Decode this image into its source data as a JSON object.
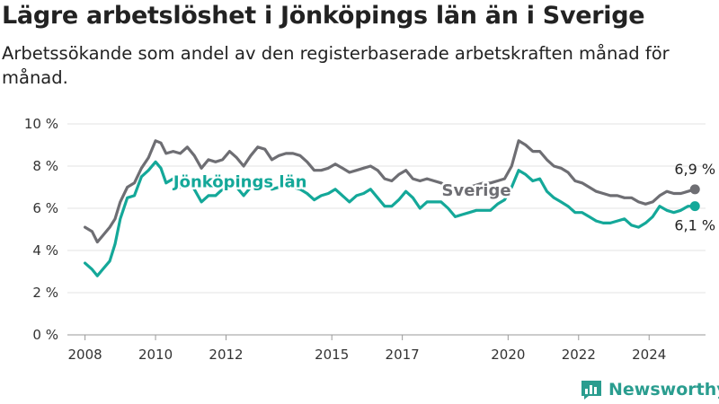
{
  "title": "Lägre arbetslöshet i Jönköpings län än i Sverige",
  "subtitle": "Arbetssökande som andel av den registerbaserade arbetskraften månad för månad.",
  "brand": {
    "name": "Newsworthy",
    "color": "#2a9d8f",
    "icon": "bar-chart-logo-icon"
  },
  "chart_data": {
    "type": "line",
    "xlabel": "",
    "ylabel": "",
    "xlim": [
      2007.5,
      2025.6
    ],
    "ylim": [
      0,
      10
    ],
    "y_ticks": [
      0,
      2,
      4,
      6,
      8,
      10
    ],
    "y_tick_labels": [
      "0 %",
      "2 %",
      "4 %",
      "6 %",
      "8 %",
      "10 %"
    ],
    "x_ticks": [
      2008,
      2010,
      2012,
      2015,
      2017,
      2020,
      2022,
      2024
    ],
    "x_tick_labels": [
      "2008",
      "2010",
      "2012",
      "2015",
      "2017",
      "2020",
      "2022",
      "2024"
    ],
    "grid": {
      "y": true,
      "x": false
    },
    "series": [
      {
        "name": "Sverige",
        "color": "#6e6e73",
        "end_label": "6,9 %",
        "x": [
          2008.0,
          2008.2,
          2008.35,
          2008.5,
          2008.7,
          2008.85,
          2009.0,
          2009.2,
          2009.4,
          2009.6,
          2009.8,
          2010.0,
          2010.15,
          2010.3,
          2010.5,
          2010.7,
          2010.9,
          2011.1,
          2011.3,
          2011.5,
          2011.7,
          2011.9,
          2012.1,
          2012.3,
          2012.5,
          2012.7,
          2012.9,
          2013.1,
          2013.3,
          2013.5,
          2013.7,
          2013.9,
          2014.1,
          2014.3,
          2014.5,
          2014.7,
          2014.9,
          2015.1,
          2015.3,
          2015.5,
          2015.7,
          2015.9,
          2016.1,
          2016.3,
          2016.5,
          2016.7,
          2016.9,
          2017.1,
          2017.3,
          2017.5,
          2017.7,
          2017.9,
          2018.1,
          2018.3,
          2018.5,
          2018.7,
          2018.9,
          2019.1,
          2019.3,
          2019.5,
          2019.7,
          2019.9,
          2020.1,
          2020.3,
          2020.5,
          2020.7,
          2020.9,
          2021.1,
          2021.3,
          2021.5,
          2021.7,
          2021.9,
          2022.1,
          2022.3,
          2022.5,
          2022.7,
          2022.9,
          2023.1,
          2023.3,
          2023.5,
          2023.7,
          2023.9,
          2024.1,
          2024.3,
          2024.5,
          2024.7,
          2024.9,
          2025.1,
          2025.3
        ],
        "y": [
          5.1,
          4.9,
          4.4,
          4.7,
          5.1,
          5.5,
          6.3,
          7.0,
          7.2,
          7.9,
          8.4,
          9.2,
          9.1,
          8.6,
          8.7,
          8.6,
          8.9,
          8.5,
          7.9,
          8.3,
          8.2,
          8.3,
          8.7,
          8.4,
          8.0,
          8.5,
          8.9,
          8.8,
          8.3,
          8.5,
          8.6,
          8.6,
          8.5,
          8.2,
          7.8,
          7.8,
          7.9,
          8.1,
          7.9,
          7.7,
          7.8,
          7.9,
          8.0,
          7.8,
          7.4,
          7.3,
          7.6,
          7.8,
          7.4,
          7.3,
          7.4,
          7.3,
          7.2,
          7.0,
          6.8,
          6.9,
          7.0,
          7.1,
          7.2,
          7.2,
          7.3,
          7.4,
          8.0,
          9.2,
          9.0,
          8.7,
          8.7,
          8.3,
          8.0,
          7.9,
          7.7,
          7.3,
          7.2,
          7.0,
          6.8,
          6.7,
          6.6,
          6.6,
          6.5,
          6.5,
          6.3,
          6.2,
          6.3,
          6.6,
          6.8,
          6.7,
          6.7,
          6.8,
          6.9
        ]
      },
      {
        "name": "Jönköpings län",
        "color": "#14a899",
        "end_label": "6,1 %",
        "x": [
          2008.0,
          2008.2,
          2008.35,
          2008.5,
          2008.7,
          2008.85,
          2009.0,
          2009.2,
          2009.4,
          2009.6,
          2009.8,
          2010.0,
          2010.15,
          2010.3,
          2010.5,
          2010.7,
          2010.9,
          2011.1,
          2011.3,
          2011.5,
          2011.7,
          2011.9,
          2012.1,
          2012.3,
          2012.5,
          2012.7,
          2012.9,
          2013.1,
          2013.3,
          2013.5,
          2013.7,
          2013.9,
          2014.1,
          2014.3,
          2014.5,
          2014.7,
          2014.9,
          2015.1,
          2015.3,
          2015.5,
          2015.7,
          2015.9,
          2016.1,
          2016.3,
          2016.5,
          2016.7,
          2016.9,
          2017.1,
          2017.3,
          2017.5,
          2017.7,
          2017.9,
          2018.1,
          2018.3,
          2018.5,
          2018.7,
          2018.9,
          2019.1,
          2019.3,
          2019.5,
          2019.7,
          2019.9,
          2020.1,
          2020.3,
          2020.5,
          2020.7,
          2020.9,
          2021.1,
          2021.3,
          2021.5,
          2021.7,
          2021.9,
          2022.1,
          2022.3,
          2022.5,
          2022.7,
          2022.9,
          2023.1,
          2023.3,
          2023.5,
          2023.7,
          2023.9,
          2024.1,
          2024.3,
          2024.5,
          2024.7,
          2024.9,
          2025.1,
          2025.3
        ],
        "y": [
          3.4,
          3.1,
          2.8,
          3.1,
          3.5,
          4.3,
          5.5,
          6.5,
          6.6,
          7.5,
          7.8,
          8.2,
          7.9,
          7.2,
          7.4,
          7.0,
          7.4,
          6.9,
          6.3,
          6.6,
          6.6,
          6.9,
          7.2,
          7.0,
          6.6,
          7.0,
          7.4,
          7.4,
          6.9,
          7.0,
          7.1,
          7.0,
          6.9,
          6.7,
          6.4,
          6.6,
          6.7,
          6.9,
          6.6,
          6.3,
          6.6,
          6.7,
          6.9,
          6.5,
          6.1,
          6.1,
          6.4,
          6.8,
          6.5,
          6.0,
          6.3,
          6.3,
          6.3,
          6.0,
          5.6,
          5.7,
          5.8,
          5.9,
          5.9,
          5.9,
          6.2,
          6.4,
          7.0,
          7.8,
          7.6,
          7.3,
          7.4,
          6.8,
          6.5,
          6.3,
          6.1,
          5.8,
          5.8,
          5.6,
          5.4,
          5.3,
          5.3,
          5.4,
          5.5,
          5.2,
          5.1,
          5.3,
          5.6,
          6.1,
          5.9,
          5.8,
          5.9,
          6.1,
          6.1
        ]
      }
    ]
  }
}
